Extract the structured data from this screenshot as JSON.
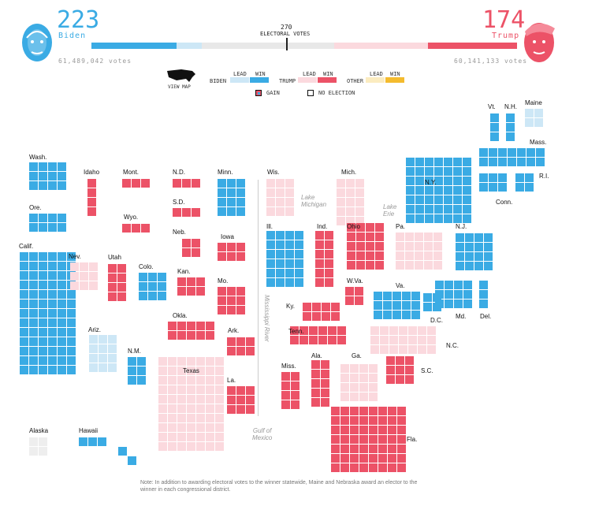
{
  "header": {
    "biden": {
      "ev": "223",
      "name": "Biden",
      "votes": "61,489,042 votes"
    },
    "trump": {
      "ev": "174",
      "name": "Trump",
      "votes": "60,141,133 votes"
    },
    "threshold_num": "270",
    "threshold_label": "ELECTORAL VOTES",
    "bar": {
      "biden_win_fraction": 0.2,
      "biden_lead_fraction": 0.06,
      "trump_lead_fraction": 0.22,
      "trump_win_fraction": 0.21
    }
  },
  "legend": {
    "view_map": "VIEW MAP",
    "biden": "BIDEN",
    "trump": "TRUMP",
    "other": "OTHER",
    "lead": "LEAD",
    "win": "WIN",
    "gain": "GAIN",
    "no_election": "NO ELECTION"
  },
  "colors": {
    "biden_win": "#3aabe4",
    "biden_lead": "#cde7f6",
    "trump_win": "#ec5267",
    "trump_lead": "#fbd9de",
    "other_win": "#f4bb2e",
    "other_lead": "#fbecc0",
    "none": "#eeeeee"
  },
  "map_labels": {
    "wa": "Wash.",
    "or": "Ore.",
    "ca": "Calif.",
    "id": "Idaho",
    "nv": "Nev.",
    "ut": "Utah",
    "az": "Ariz.",
    "mt": "Mont.",
    "wy": "Wyo.",
    "co": "Colo.",
    "nm": "N.M.",
    "nd": "N.D.",
    "sd": "S.D.",
    "ne": "Neb.",
    "ks": "Kan.",
    "ok": "Okla.",
    "tx": "Texas",
    "mn": "Minn.",
    "ia": "Iowa",
    "mo": "Mo.",
    "ar": "Ark.",
    "la": "La.",
    "wi": "Wis.",
    "mi": "Mich.",
    "il": "Ill.",
    "in": "Ind.",
    "oh": "Ohio",
    "ky": "Ky.",
    "tn": "Tenn.",
    "ms": "Miss.",
    "al": "Ala.",
    "ga": "Ga.",
    "fl": "Fla.",
    "sc": "S.C.",
    "nc": "N.C.",
    "va": "Va.",
    "wv": "W.Va.",
    "pa": "Pa.",
    "ny": "N.Y.",
    "nj": "N.J.",
    "md": "Md.",
    "de": "Del.",
    "dc": "D.C.",
    "vt": "Vt.",
    "nh": "N.H.",
    "me": "Maine",
    "ma": "Mass.",
    "ri": "R.I.",
    "ct": "Conn.",
    "ak": "Alaska",
    "hi": "Hawaii"
  },
  "water_labels": {
    "lake_michigan": "Lake\nMichigan",
    "lake_erie": "Lake\nErie",
    "mississippi": "Mississippi River",
    "gulf": "Gulf of\nMexico"
  },
  "note": "Note: In addition to awarding electoral votes to the winner statewide, Maine and Nebraska award an elector to the winner in each congressional district."
}
